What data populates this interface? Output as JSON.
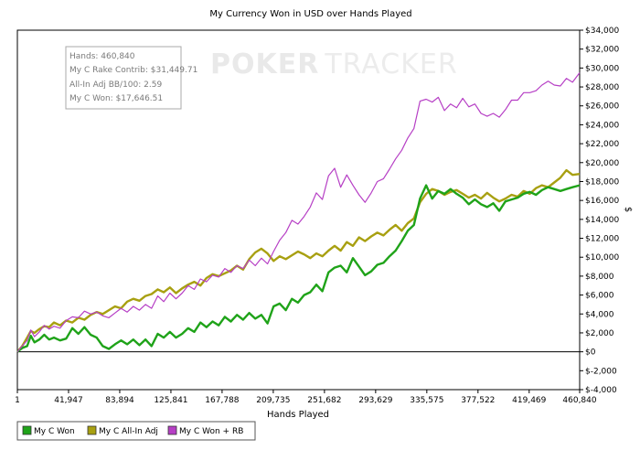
{
  "chart_data": {
    "type": "line",
    "title": "My Currency Won in USD over Hands Played",
    "xlabel": "Hands Played",
    "ylabel": "$",
    "xlim": [
      1,
      460840
    ],
    "ylim": [
      -4000,
      34000
    ],
    "x_ticks": [
      1,
      41947,
      83894,
      125841,
      167788,
      209735,
      251682,
      293629,
      335575,
      377522,
      419469,
      460840
    ],
    "x_tick_labels": [
      "1",
      "41,947",
      "83,894",
      "125,841",
      "167,788",
      "209,735",
      "251,682",
      "293,629",
      "335,575",
      "377,522",
      "419,469",
      "460,840"
    ],
    "y_ticks": [
      -4000,
      -2000,
      0,
      2000,
      4000,
      6000,
      8000,
      10000,
      12000,
      14000,
      16000,
      18000,
      20000,
      22000,
      24000,
      26000,
      28000,
      30000,
      32000,
      34000
    ],
    "y_tick_labels": [
      "$-4,000",
      "$-2,000",
      "$0",
      "$2,000",
      "$4,000",
      "$6,000",
      "$8,000",
      "$10,000",
      "$12,000",
      "$14,000",
      "$16,000",
      "$18,000",
      "$20,000",
      "$22,000",
      "$24,000",
      "$26,000",
      "$28,000",
      "$30,000",
      "$32,000",
      "$34,000"
    ],
    "grid": false,
    "legend_position": "bottom-left",
    "series": [
      {
        "name": "My C Won",
        "color": "#1fa319",
        "width": 2.4,
        "x": [
          1,
          4000,
          8000,
          11000,
          14000,
          18000,
          22000,
          26000,
          30000,
          35000,
          40000,
          45000,
          50000,
          55000,
          60000,
          65000,
          70000,
          75000,
          80000,
          85000,
          90000,
          95000,
          100000,
          105000,
          110000,
          115000,
          120000,
          125000,
          130000,
          135000,
          140000,
          145000,
          150000,
          155000,
          160000,
          165000,
          170000,
          175000,
          180000,
          185000,
          190000,
          195000,
          200000,
          205000,
          210000,
          215000,
          220000,
          225000,
          230000,
          235000,
          240000,
          245000,
          250000,
          255000,
          260000,
          265000,
          270000,
          275000,
          280000,
          285000,
          290000,
          295000,
          300000,
          305000,
          310000,
          315000,
          320000,
          325000,
          330000,
          335000,
          340000,
          345000,
          350000,
          355000,
          360000,
          365000,
          370000,
          375000,
          380000,
          385000,
          390000,
          395000,
          400000,
          405000,
          410000,
          415000,
          420000,
          425000,
          430000,
          435000,
          440000,
          445000,
          450000,
          455000,
          460840
        ],
        "y": [
          0,
          400,
          600,
          1700,
          1000,
          1300,
          1800,
          1300,
          1500,
          1200,
          1400,
          2500,
          1900,
          2600,
          1800,
          1500,
          600,
          300,
          800,
          1200,
          800,
          1300,
          700,
          1300,
          600,
          1900,
          1500,
          2100,
          1500,
          1900,
          2500,
          2100,
          3100,
          2600,
          3200,
          2800,
          3700,
          3200,
          3900,
          3400,
          4100,
          3500,
          3900,
          3000,
          4800,
          5100,
          4400,
          5600,
          5200,
          6000,
          6300,
          7100,
          6400,
          8400,
          8900,
          9100,
          8400,
          9900,
          9000,
          8100,
          8500,
          9200,
          9400,
          10100,
          10700,
          11700,
          12800,
          13400,
          16200,
          17600,
          16200,
          17000,
          16700,
          17200,
          16700,
          16300,
          15600,
          16100,
          15600,
          15300,
          15700,
          14900,
          15900,
          16100,
          16300,
          16700,
          16900,
          16600,
          17100,
          17400,
          17200,
          17000,
          17200,
          17400,
          17600
        ]
      },
      {
        "name": "My C All-In Adj",
        "color": "#a8a011",
        "width": 2.4,
        "x": [
          1,
          4000,
          8000,
          11000,
          14000,
          18000,
          22000,
          26000,
          30000,
          35000,
          40000,
          45000,
          50000,
          55000,
          60000,
          65000,
          70000,
          75000,
          80000,
          85000,
          90000,
          95000,
          100000,
          105000,
          110000,
          115000,
          120000,
          125000,
          130000,
          135000,
          140000,
          145000,
          150000,
          155000,
          160000,
          165000,
          170000,
          175000,
          180000,
          185000,
          190000,
          195000,
          200000,
          205000,
          210000,
          215000,
          220000,
          225000,
          230000,
          235000,
          240000,
          245000,
          250000,
          255000,
          260000,
          265000,
          270000,
          275000,
          280000,
          285000,
          290000,
          295000,
          300000,
          305000,
          310000,
          315000,
          320000,
          325000,
          330000,
          335000,
          340000,
          345000,
          350000,
          355000,
          360000,
          365000,
          370000,
          375000,
          380000,
          385000,
          390000,
          395000,
          400000,
          405000,
          410000,
          415000,
          420000,
          425000,
          430000,
          435000,
          440000,
          445000,
          450000,
          455000,
          460840
        ],
        "y": [
          0,
          600,
          1500,
          2200,
          2000,
          2400,
          2700,
          2600,
          3100,
          2800,
          3300,
          3100,
          3600,
          3400,
          3900,
          4200,
          4000,
          4400,
          4800,
          4600,
          5300,
          5600,
          5400,
          5900,
          6100,
          6600,
          6300,
          6800,
          6200,
          6700,
          7100,
          7400,
          7000,
          7800,
          8200,
          8000,
          8300,
          8600,
          9100,
          8700,
          9800,
          10500,
          10900,
          10400,
          9600,
          10100,
          9800,
          10200,
          10600,
          10300,
          9900,
          10400,
          10100,
          10700,
          11200,
          10700,
          11600,
          11200,
          12100,
          11700,
          12200,
          12600,
          12300,
          12900,
          13400,
          12800,
          13600,
          14100,
          15800,
          16700,
          17200,
          17000,
          16600,
          16900,
          17100,
          16700,
          16300,
          16600,
          16200,
          16800,
          16300,
          15900,
          16200,
          16600,
          16400,
          17000,
          16700,
          17300,
          17600,
          17400,
          17900,
          18400,
          19200,
          18700,
          18800
        ]
      },
      {
        "name": "My C Won + RB",
        "color": "#b63fc5",
        "width": 1.2,
        "x": [
          1,
          4000,
          8000,
          11000,
          14000,
          18000,
          22000,
          26000,
          30000,
          35000,
          40000,
          45000,
          50000,
          55000,
          60000,
          65000,
          70000,
          75000,
          80000,
          85000,
          90000,
          95000,
          100000,
          105000,
          110000,
          115000,
          120000,
          125000,
          130000,
          135000,
          140000,
          145000,
          150000,
          155000,
          160000,
          165000,
          170000,
          175000,
          180000,
          185000,
          190000,
          195000,
          200000,
          205000,
          210000,
          215000,
          220000,
          225000,
          230000,
          235000,
          240000,
          245000,
          250000,
          255000,
          260000,
          265000,
          270000,
          275000,
          280000,
          285000,
          290000,
          295000,
          300000,
          305000,
          310000,
          315000,
          320000,
          325000,
          330000,
          335000,
          340000,
          345000,
          350000,
          355000,
          360000,
          365000,
          370000,
          375000,
          380000,
          385000,
          390000,
          395000,
          400000,
          405000,
          410000,
          415000,
          420000,
          425000,
          430000,
          435000,
          440000,
          445000,
          450000,
          455000,
          460840
        ],
        "y": [
          0,
          600,
          1200,
          2300,
          1600,
          2100,
          2800,
          2400,
          2700,
          2500,
          3300,
          3700,
          3600,
          4300,
          4000,
          4200,
          3800,
          3600,
          4100,
          4600,
          4200,
          4800,
          4400,
          5000,
          4600,
          5900,
          5300,
          6200,
          5600,
          6200,
          7000,
          6600,
          7700,
          7400,
          8100,
          7900,
          8800,
          8400,
          9100,
          8800,
          9700,
          9100,
          9900,
          9300,
          10600,
          11800,
          12600,
          13900,
          13500,
          14300,
          15300,
          16800,
          16100,
          18600,
          19400,
          17400,
          18700,
          17600,
          16600,
          15800,
          16800,
          18000,
          18300,
          19300,
          20400,
          21300,
          22600,
          23600,
          26500,
          26700,
          26400,
          26900,
          25500,
          26200,
          25800,
          26800,
          25900,
          26200,
          25200,
          24900,
          25200,
          24800,
          25600,
          26600,
          26600,
          27400,
          27400,
          27600,
          28200,
          28600,
          28200,
          28100,
          28900,
          28500,
          29500
        ]
      }
    ],
    "info_box": [
      "Hands: 460,840",
      "My C Rake Contrib: $31,449.71",
      "All-In Adj BB/100: 2.59",
      "My C Won: $17,646.51"
    ],
    "watermark": {
      "part1": "POKER",
      "part2": "TRACKER"
    }
  }
}
